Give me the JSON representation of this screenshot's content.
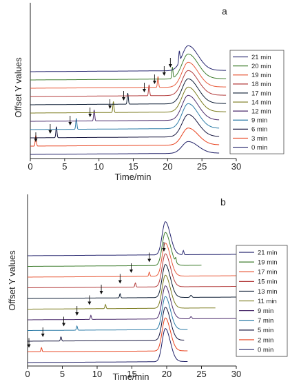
{
  "figure": {
    "ylabel": "Offset Y values",
    "xlabel": "Time/min"
  },
  "chart_data": [
    {
      "type": "line",
      "panel_label": "a",
      "xlabel": "Time/min",
      "ylabel": "Offset Y values",
      "xlim": [
        0,
        30
      ],
      "xticks": [
        "0",
        "5",
        "10",
        "15",
        "20",
        "25",
        "30"
      ],
      "legend_position": "right",
      "main_peak": {
        "center": 23.0,
        "width": 0.9
      },
      "series": [
        {
          "name": "0 min",
          "color": "#1f1f66",
          "end": 27.5,
          "main_height": 0.45,
          "injection_peak": null,
          "arrow_at": null,
          "system_peak": null
        },
        {
          "name": "3 min",
          "color": "#e8421e",
          "end": 27.5,
          "main_height": 0.65,
          "injection_peak": 0.8,
          "arrow_at": 0.8,
          "system_peak": null
        },
        {
          "name": "6 min",
          "color": "#15153f",
          "end": 27.5,
          "main_height": 0.85,
          "injection_peak": 3.8,
          "arrow_at": 2.9,
          "system_peak": null
        },
        {
          "name": "9 min",
          "color": "#2a7aa6",
          "end": 27.5,
          "main_height": 0.95,
          "injection_peak": 6.7,
          "arrow_at": 5.8,
          "system_peak": null
        },
        {
          "name": "12 min",
          "color": "#4a2a6b",
          "end": 27.5,
          "main_height": 0.95,
          "injection_peak": 9.3,
          "arrow_at": 8.7,
          "system_peak": null
        },
        {
          "name": "14 min",
          "color": "#7a7a1c",
          "end": 28.5,
          "main_height": 0.95,
          "injection_peak": 12.1,
          "arrow_at": 11.6,
          "system_peak": null
        },
        {
          "name": "17 min",
          "color": "#0c1c33",
          "end": 28.5,
          "main_height": 0.95,
          "injection_peak": 14.2,
          "arrow_at": 13.6,
          "system_peak": null
        },
        {
          "name": "18 min",
          "color": "#b23a3a",
          "end": 28.5,
          "main_height": 0.95,
          "injection_peak": 17.3,
          "arrow_at": 16.6,
          "system_peak": null
        },
        {
          "name": "19 min",
          "color": "#e85a3a",
          "end": 28.5,
          "main_height": 0.95,
          "injection_peak": 18.6,
          "arrow_at": 18.1,
          "system_peak": null
        },
        {
          "name": "20 min",
          "color": "#3f7d2e",
          "end": 28.5,
          "main_height": 0.95,
          "injection_peak": 20.7,
          "arrow_at": 19.5,
          "system_peak": null
        },
        {
          "name": "21 min",
          "color": "#24246e",
          "end": 28.5,
          "main_height": 0.95,
          "injection_peak": 21.7,
          "arrow_at": 20.4,
          "system_peak": null
        }
      ]
    },
    {
      "type": "line",
      "panel_label": "b",
      "xlabel": "Time/min",
      "ylabel": "Offset Y values",
      "xlim": [
        0,
        30
      ],
      "xticks": [
        "0",
        "5",
        "10",
        "15",
        "20",
        "25",
        "30"
      ],
      "legend_position": "right",
      "main_peak": {
        "center": 19.8,
        "width": 0.45
      },
      "series": [
        {
          "name": "0 min",
          "color": "#1f1f66",
          "end": 23.0,
          "main_height": 1.5,
          "injection_peak": null,
          "arrow_at": null,
          "system_peak": null
        },
        {
          "name": "2 min",
          "color": "#e8421e",
          "end": 23.0,
          "main_height": 1.5,
          "injection_peak": 2.0,
          "arrow_at": 0.2,
          "system_peak": null
        },
        {
          "name": "5 min",
          "color": "#15153f",
          "end": 22.5,
          "main_height": 1.5,
          "injection_peak": 4.8,
          "arrow_at": 2.2,
          "system_peak": null
        },
        {
          "name": "7 min",
          "color": "#2a7aa6",
          "end": 23.0,
          "main_height": 1.5,
          "injection_peak": 7.1,
          "arrow_at": 5.2,
          "system_peak": null
        },
        {
          "name": "9 min",
          "color": "#4a2a6b",
          "end": 30.0,
          "main_height": 1.5,
          "injection_peak": 9.1,
          "arrow_at": 7.1,
          "system_peak": 23.5
        },
        {
          "name": "11 min",
          "color": "#7a7a1c",
          "end": 27.0,
          "main_height": 1.5,
          "injection_peak": 11.2,
          "arrow_at": 8.9,
          "system_peak": null
        },
        {
          "name": "13 min",
          "color": "#0c1c33",
          "end": 30.0,
          "main_height": 1.5,
          "injection_peak": 13.3,
          "arrow_at": 10.6,
          "system_peak": 23.5
        },
        {
          "name": "15 min",
          "color": "#b23a3a",
          "end": 30.0,
          "main_height": 1.5,
          "injection_peak": 15.5,
          "arrow_at": 13.3,
          "system_peak": null
        },
        {
          "name": "17 min",
          "color": "#e85a3a",
          "end": 30.0,
          "main_height": 1.5,
          "injection_peak": 17.5,
          "arrow_at": 14.9,
          "system_peak": null
        },
        {
          "name": "19 min",
          "color": "#3f7d2e",
          "end": 25.0,
          "main_height": 1.5,
          "injection_peak": 21.3,
          "arrow_at": 17.5,
          "system_peak": null
        },
        {
          "name": "21 min",
          "color": "#24246e",
          "end": 30.0,
          "main_height": 1.5,
          "injection_peak": 22.4,
          "arrow_at": 19.6,
          "system_peak": null
        }
      ]
    }
  ]
}
